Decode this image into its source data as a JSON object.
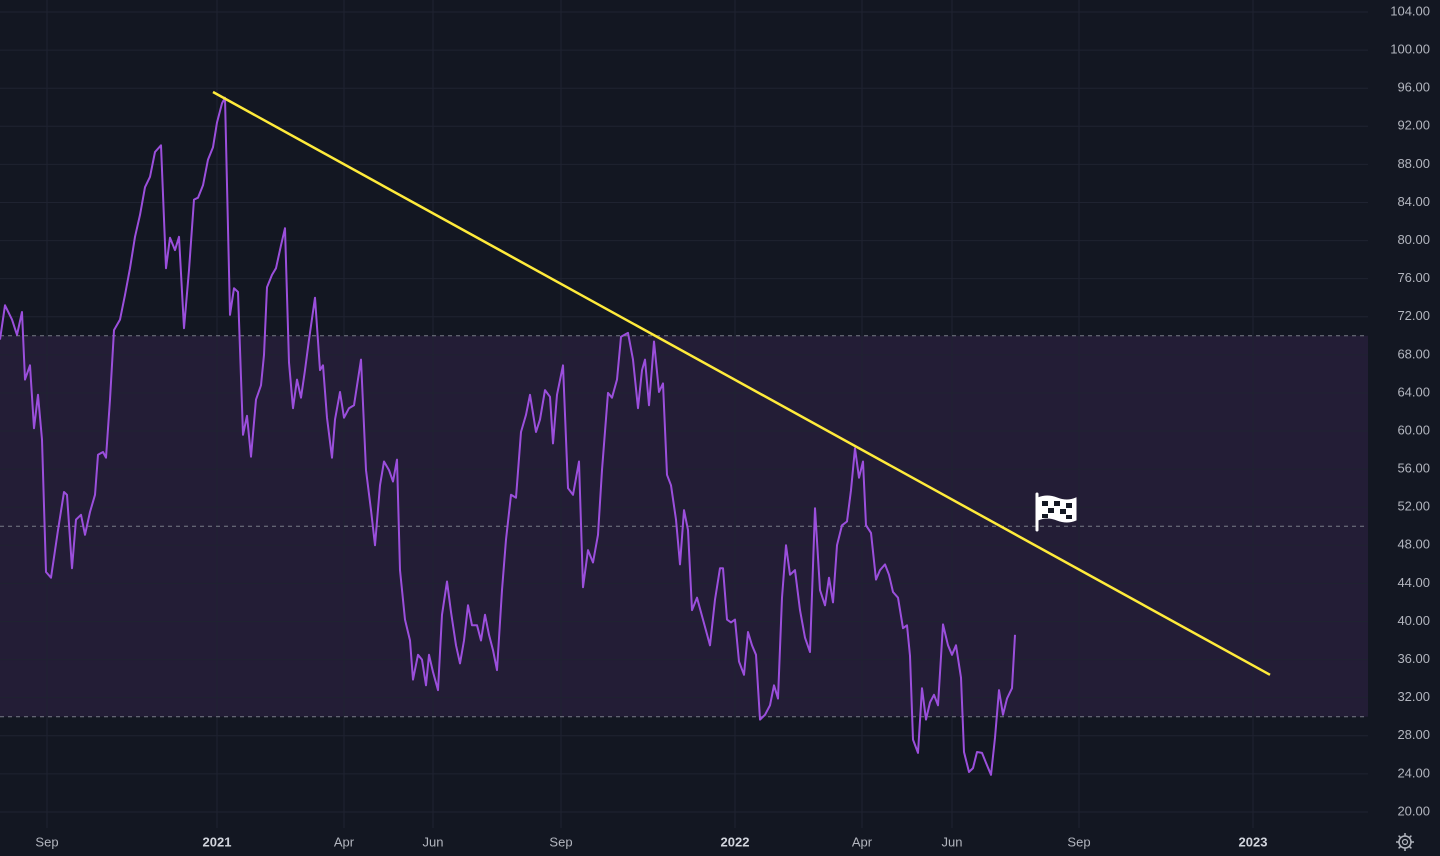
{
  "chart_data": {
    "type": "line",
    "xlim": [
      0,
      1368
    ],
    "ylim": [
      18,
      105
    ],
    "grid": true,
    "xticks": [
      {
        "value": 47,
        "label": "Sep"
      },
      {
        "value": 217,
        "label": "2021"
      },
      {
        "value": 344,
        "label": "Apr"
      },
      {
        "value": 433,
        "label": "Jun"
      },
      {
        "value": 561,
        "label": "Sep"
      },
      {
        "value": 735,
        "label": "2022"
      },
      {
        "value": 862,
        "label": "Apr"
      },
      {
        "value": 952,
        "label": "Jun"
      },
      {
        "value": 1079,
        "label": "Sep"
      },
      {
        "value": 1253,
        "label": "2023"
      }
    ],
    "yticks": [
      {
        "value": 20,
        "label": "20.00"
      },
      {
        "value": 24,
        "label": "24.00"
      },
      {
        "value": 28,
        "label": "28.00"
      },
      {
        "value": 32,
        "label": "32.00"
      },
      {
        "value": 36,
        "label": "36.00"
      },
      {
        "value": 40,
        "label": "40.00"
      },
      {
        "value": 44,
        "label": "44.00"
      },
      {
        "value": 48,
        "label": "48.00"
      },
      {
        "value": 52,
        "label": "52.00"
      },
      {
        "value": 56,
        "label": "56.00"
      },
      {
        "value": 60,
        "label": "60.00"
      },
      {
        "value": 64,
        "label": "64.00"
      },
      {
        "value": 68,
        "label": "68.00"
      },
      {
        "value": 72,
        "label": "72.00"
      },
      {
        "value": 76,
        "label": "76.00"
      },
      {
        "value": 80,
        "label": "80.00"
      },
      {
        "value": 84,
        "label": "84.00"
      },
      {
        "value": 88,
        "label": "88.00"
      },
      {
        "value": 92,
        "label": "92.00"
      },
      {
        "value": 96,
        "label": "96.00"
      },
      {
        "value": 100,
        "label": "100.00"
      },
      {
        "value": 104,
        "label": "104.00"
      }
    ],
    "bands": {
      "upper": 70,
      "middle": 50,
      "lower": 30,
      "color": "#231d36"
    },
    "trendline": {
      "x": [
        213,
        1270
      ],
      "values": [
        95.6,
        34.4
      ],
      "color": "#ffeb3b"
    },
    "series": [
      {
        "color": "#9b4fdc",
        "x": [
          0,
          5,
          12,
          17,
          22,
          25,
          30,
          34,
          38,
          42,
          46,
          51,
          58,
          64,
          67,
          72,
          76,
          81,
          85,
          90,
          95,
          98,
          103,
          106,
          110,
          114,
          120,
          125,
          130,
          135,
          140,
          145,
          150,
          155,
          161,
          166,
          170,
          175,
          179,
          184,
          189,
          194,
          198,
          203,
          208,
          213,
          217,
          222,
          225,
          230,
          234,
          238,
          243,
          247,
          251,
          256,
          261,
          264,
          267,
          272,
          276,
          281,
          285,
          289,
          293,
          297,
          301,
          305,
          309,
          315,
          320,
          323,
          327,
          332,
          335,
          340,
          344,
          349,
          354,
          361,
          366,
          371,
          375,
          380,
          384,
          389,
          393,
          397,
          400,
          405,
          410,
          413,
          418,
          422,
          426,
          429,
          433,
          438,
          442,
          447,
          451,
          456,
          460,
          464,
          468,
          472,
          477,
          481,
          485,
          489,
          493,
          497,
          502,
          506,
          511,
          516,
          521,
          526,
          530,
          536,
          540,
          545,
          550,
          553,
          557,
          563,
          568,
          573,
          579,
          583,
          588,
          593,
          598,
          602,
          608,
          612,
          617,
          621,
          628,
          633,
          638,
          642,
          645,
          649,
          654,
          659,
          663,
          667,
          671,
          676,
          680,
          684,
          688,
          692,
          697,
          703,
          710,
          715,
          720,
          723,
          727,
          731,
          735,
          739,
          744,
          748,
          752,
          756,
          760,
          765,
          770,
          774,
          778,
          782,
          786,
          790,
          795,
          800,
          805,
          810,
          815,
          820,
          825,
          829,
          833,
          837,
          842,
          847,
          851,
          855,
          859,
          863,
          866,
          871,
          876,
          880,
          885,
          889,
          893,
          898,
          903,
          907,
          910,
          913,
          918,
          922,
          926,
          930,
          934,
          938,
          943,
          948,
          952,
          956,
          961,
          964,
          969,
          973,
          977,
          982,
          987,
          991,
          995,
          999,
          1003,
          1007,
          1012,
          1015
        ],
        "values": [
          69.6,
          73.2,
          71.7,
          70.1,
          72.5,
          65.4,
          66.9,
          60.3,
          63.8,
          59.1,
          45.2,
          44.6,
          49.6,
          53.6,
          53.3,
          45.6,
          50.7,
          51.2,
          49.1,
          51.5,
          53.3,
          57.5,
          57.8,
          57.2,
          63.3,
          70.6,
          71.7,
          74.3,
          77.1,
          80.4,
          82.7,
          85.6,
          86.7,
          89.3,
          90.0,
          77.1,
          80.3,
          79.0,
          80.4,
          70.8,
          76.9,
          84.3,
          84.5,
          85.8,
          88.5,
          89.8,
          92.4,
          94.4,
          95.0,
          72.2,
          75.0,
          74.6,
          59.6,
          61.6,
          57.3,
          63.3,
          64.8,
          68.0,
          75.1,
          76.4,
          77.1,
          79.5,
          81.3,
          67.2,
          62.4,
          65.4,
          63.5,
          66.4,
          69.6,
          74.0,
          66.4,
          66.9,
          61.4,
          57.2,
          61.2,
          64.1,
          61.4,
          62.4,
          62.7,
          67.5,
          55.9,
          51.7,
          48.0,
          54.3,
          56.8,
          55.9,
          54.7,
          57.0,
          45.4,
          40.2,
          38.0,
          33.9,
          36.5,
          36.0,
          33.3,
          36.5,
          34.7,
          32.8,
          40.7,
          44.2,
          41.0,
          37.5,
          35.6,
          38.0,
          41.7,
          39.6,
          39.6,
          38.0,
          40.7,
          38.6,
          37.0,
          34.9,
          43.3,
          48.6,
          53.3,
          53.0,
          59.9,
          61.7,
          63.8,
          59.9,
          61.2,
          64.3,
          63.6,
          58.7,
          63.8,
          66.9,
          54.0,
          53.3,
          56.8,
          43.6,
          47.5,
          46.2,
          49.1,
          55.9,
          64.0,
          63.5,
          65.4,
          69.9,
          70.3,
          67.5,
          62.4,
          66.4,
          67.5,
          62.7,
          69.4,
          64.1,
          65.0,
          55.4,
          54.3,
          50.7,
          46.0,
          51.7,
          49.6,
          41.2,
          42.5,
          40.2,
          37.5,
          42.3,
          45.6,
          45.6,
          40.2,
          39.9,
          40.2,
          35.8,
          34.4,
          38.9,
          37.5,
          36.5,
          29.7,
          30.2,
          31.2,
          33.3,
          31.9,
          42.5,
          48.0,
          44.9,
          45.4,
          41.2,
          38.3,
          36.8,
          51.9,
          43.3,
          41.7,
          44.6,
          42.0,
          48.0,
          50.1,
          50.5,
          53.8,
          58.2,
          55.1,
          56.8,
          50.1,
          49.3,
          44.4,
          45.4,
          46.0,
          44.9,
          43.1,
          42.5,
          39.3,
          39.6,
          36.4,
          27.6,
          26.2,
          33.0,
          29.7,
          31.5,
          32.3,
          31.2,
          39.7,
          37.5,
          36.5,
          37.5,
          34.1,
          26.3,
          24.2,
          24.6,
          26.3,
          26.2,
          24.9,
          23.9,
          27.8,
          32.8,
          30.2,
          31.9,
          33.0,
          38.6
        ]
      }
    ]
  }
}
